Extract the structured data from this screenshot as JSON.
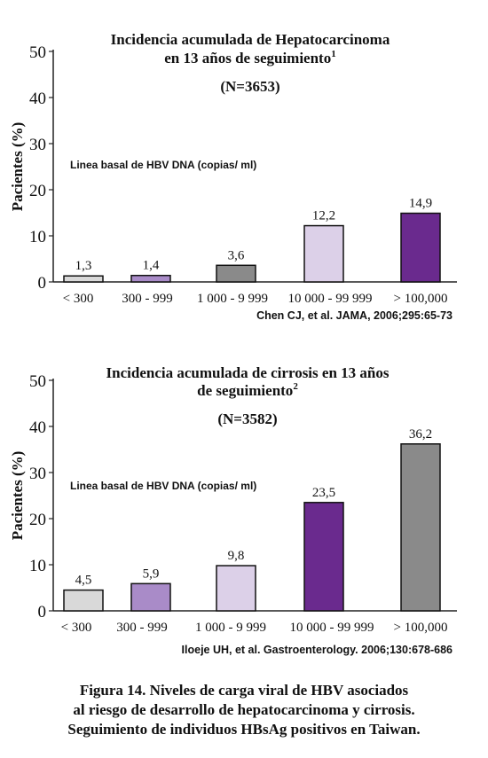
{
  "chart_data": [
    {
      "type": "bar",
      "title_line1": "Incidencia acumulada de Hepatocarcinoma",
      "title_line2": "en 13 años de seguimiento",
      "title_sup": "1",
      "subtitle": "(N=3653)",
      "ylabel": "Pacientes (%)",
      "annotation": "Linea basal de HBV DNA (copias/ ml)",
      "categories": [
        "< 300",
        "300 - 999",
        "1 000 - 9 999",
        "10 000 - 99 999",
        "> 100,000"
      ],
      "values": [
        1.3,
        1.4,
        3.6,
        12.2,
        14.9
      ],
      "value_labels": [
        "1,3",
        "1,4",
        "3,6",
        "12,2",
        "14,9"
      ],
      "colors": [
        "#d9d9d9",
        "#a98bc8",
        "#8a8a8a",
        "#dcd0e8",
        "#6a2a8e"
      ],
      "yticks": [
        "0",
        "10",
        "20",
        "30",
        "40",
        "50"
      ],
      "ylim": [
        0,
        50
      ],
      "source": "Chen CJ, et al. JAMA, 2006;295:65-73"
    },
    {
      "type": "bar",
      "title_line1": "Incidencia acumulada de cirrosis en 13 años",
      "title_line2": "de seguimiento",
      "title_sup": "2",
      "subtitle": "(N=3582)",
      "ylabel": "Pacientes (%)",
      "annotation": "Linea basal de HBV DNA (copias/ ml)",
      "categories": [
        "< 300",
        "300 - 999",
        "1 000 - 9 999",
        "10 000 - 99 999",
        "> 100,000"
      ],
      "values": [
        4.5,
        5.9,
        9.8,
        23.5,
        36.2
      ],
      "value_labels": [
        "4,5",
        "5,9",
        "9,8",
        "23,5",
        "36,2"
      ],
      "colors": [
        "#d9d9d9",
        "#a98bc8",
        "#dcd0e8",
        "#6a2a8e",
        "#8a8a8a"
      ],
      "yticks": [
        "0",
        "10",
        "20",
        "30",
        "40",
        "50"
      ],
      "ylim": [
        0,
        50
      ],
      "source": "Iloeje UH, et al. Gastroenterology. 2006;130:678-686"
    }
  ],
  "caption": {
    "line1": "Figura 14.  Niveles de carga viral de HBV  asociados",
    "line2": "al riesgo de desarrollo de hepatocarcinoma y cirrosis.",
    "line3": "Seguimiento de individuos HBsAg positivos en Taiwan."
  }
}
